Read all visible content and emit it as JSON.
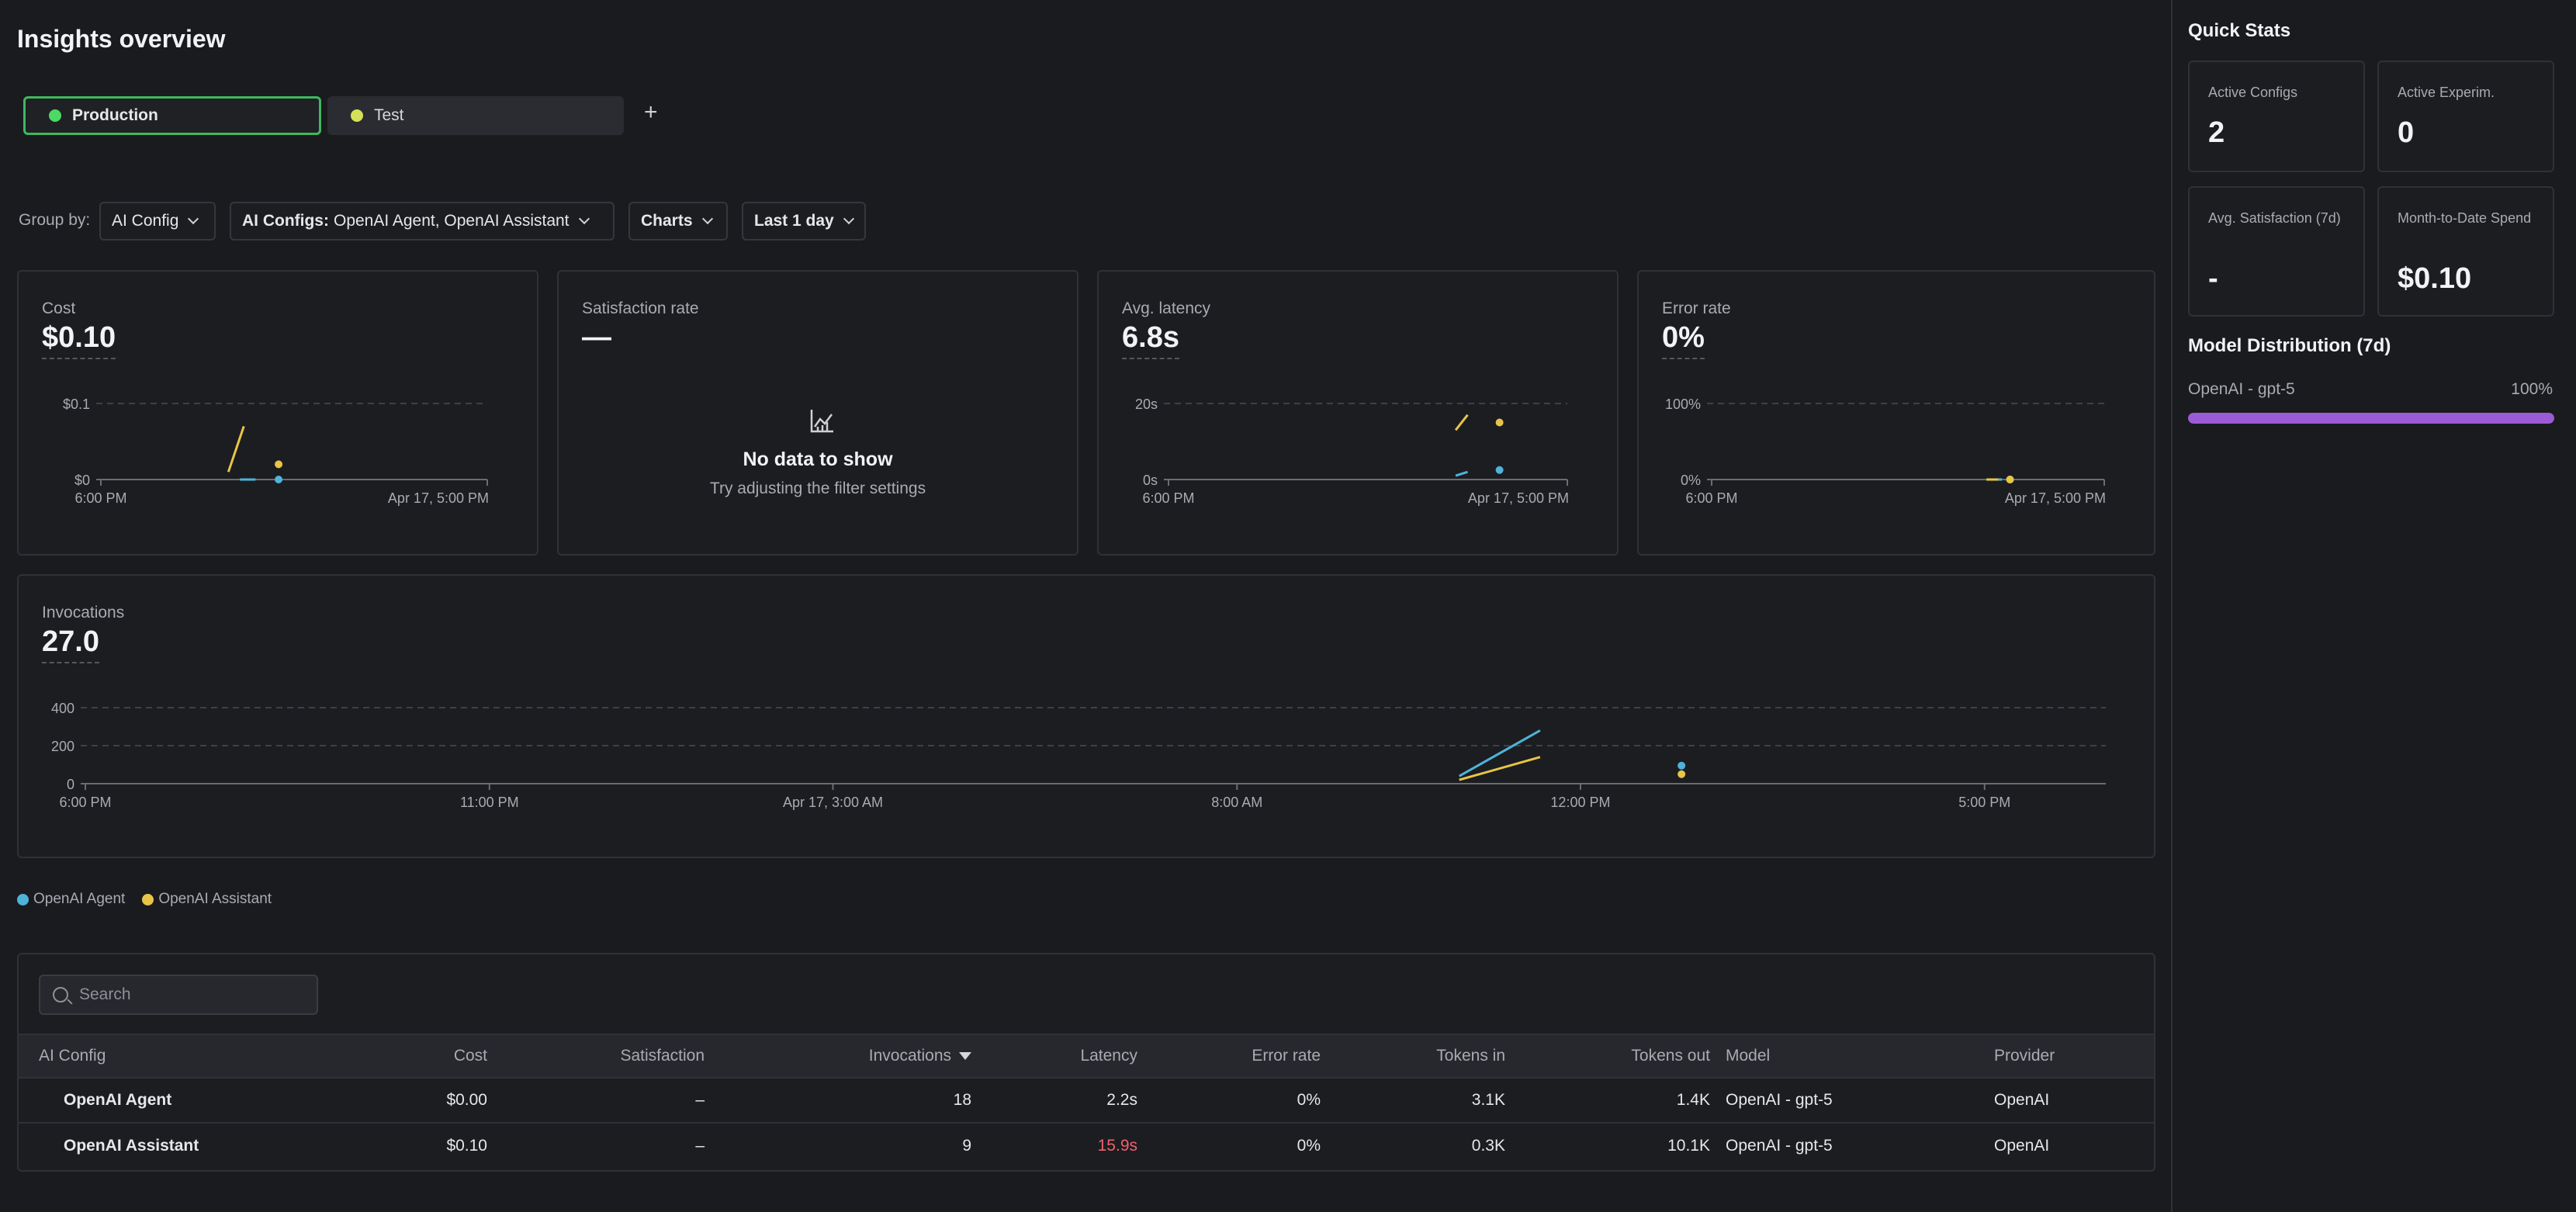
{
  "page": {
    "title": "Insights overview"
  },
  "tabs": [
    {
      "label": "Production",
      "color": "#4cd964",
      "active": true
    },
    {
      "label": "Test",
      "color": "#d4e157",
      "active": false
    }
  ],
  "filters": {
    "group_by_label": "Group by:",
    "group_by_value": "AI Config",
    "ai_configs_label": "AI Configs:",
    "ai_configs_value": "OpenAI Agent, OpenAI Assistant",
    "view": "Charts",
    "range": "Last 1 day"
  },
  "colors": {
    "agent": "#4fb3d9",
    "assistant": "#e8c547",
    "error": "#f0616d",
    "accent": "#3fb85f",
    "model_bar": "#9c5bd6"
  },
  "metrics": {
    "cost": {
      "label": "Cost",
      "value": "$0.10"
    },
    "satisfaction": {
      "label": "Satisfaction rate",
      "value": "—",
      "nodata_title": "No data to show",
      "nodata_sub": "Try adjusting the filter settings"
    },
    "latency": {
      "label": "Avg. latency",
      "value": "6.8s"
    },
    "error": {
      "label": "Error rate",
      "value": "0%"
    },
    "invocations": {
      "label": "Invocations",
      "value": "27.0"
    }
  },
  "chart_data": [
    {
      "type": "line",
      "title": "Cost",
      "y_ticks": [
        "$0",
        "$0.1"
      ],
      "x_ticks": [
        "6:00 PM",
        "Apr 17, 5:00 PM"
      ],
      "ylim": [
        0,
        0.1
      ],
      "series": [
        {
          "name": "OpenAI Agent",
          "values": [
            0.0,
            0.0
          ]
        },
        {
          "name": "OpenAI Assistant",
          "values": [
            0.01,
            0.07,
            0.02
          ]
        }
      ]
    },
    {
      "type": "line",
      "title": "Avg. latency",
      "y_ticks": [
        "0s",
        "20s"
      ],
      "x_ticks": [
        "6:00 PM",
        "Apr 17, 5:00 PM"
      ],
      "ylim": [
        0,
        20
      ],
      "series": [
        {
          "name": "OpenAI Agent",
          "values": [
            1,
            2,
            2.5
          ]
        },
        {
          "name": "OpenAI Assistant",
          "values": [
            13,
            17,
            15
          ]
        }
      ]
    },
    {
      "type": "line",
      "title": "Error rate",
      "y_ticks": [
        "0%",
        "100%"
      ],
      "x_ticks": [
        "6:00 PM",
        "Apr 17, 5:00 PM"
      ],
      "ylim": [
        0,
        100
      ],
      "series": [
        {
          "name": "OpenAI Agent",
          "values": [
            0,
            0
          ]
        },
        {
          "name": "OpenAI Assistant",
          "values": [
            0,
            0,
            0
          ]
        }
      ]
    },
    {
      "type": "line",
      "title": "Invocations",
      "y_ticks": [
        "0",
        "200",
        "400"
      ],
      "x_ticks": [
        "6:00 PM",
        "11:00 PM",
        "Apr 17, 3:00 AM",
        "8:00 AM",
        "12:00 PM",
        "5:00 PM"
      ],
      "ylim": [
        0,
        400
      ],
      "series": [
        {
          "name": "OpenAI Agent",
          "values": [
            40,
            280,
            95
          ]
        },
        {
          "name": "OpenAI Assistant",
          "values": [
            20,
            140,
            50
          ]
        }
      ]
    }
  ],
  "legend": [
    "OpenAI Agent",
    "OpenAI Assistant"
  ],
  "table": {
    "search_placeholder": "Search",
    "headers": [
      "AI Config",
      "Cost",
      "Satisfaction",
      "Invocations",
      "Latency",
      "Error rate",
      "Tokens in",
      "Tokens out",
      "Model",
      "Provider"
    ],
    "rows": [
      {
        "config": "OpenAI Agent",
        "cost": "$0.00",
        "satisfaction": "–",
        "invocations": "18",
        "latency": "2.2s",
        "error_rate": "0%",
        "tokens_in": "3.1K",
        "tokens_out": "1.4K",
        "model": "OpenAI - gpt-5",
        "provider": "OpenAI"
      },
      {
        "config": "OpenAI Assistant",
        "cost": "$0.10",
        "satisfaction": "–",
        "invocations": "9",
        "latency": "15.9s",
        "error_rate": "0%",
        "tokens_in": "0.3K",
        "tokens_out": "10.1K",
        "model": "OpenAI - gpt-5",
        "provider": "OpenAI"
      }
    ]
  },
  "sidebar": {
    "title": "Quick Stats",
    "stats": [
      {
        "label": "Active Configs",
        "value": "2"
      },
      {
        "label": "Active Experim.",
        "value": "0"
      },
      {
        "label": "Avg. Satisfaction (7d)",
        "value": "-"
      },
      {
        "label": "Month-to-Date Spend",
        "value": "$0.10"
      }
    ],
    "model_distribution": {
      "title": "Model Distribution (7d)",
      "label": "OpenAI - gpt-5",
      "percent_label": "100%",
      "fraction": 1.0
    }
  }
}
